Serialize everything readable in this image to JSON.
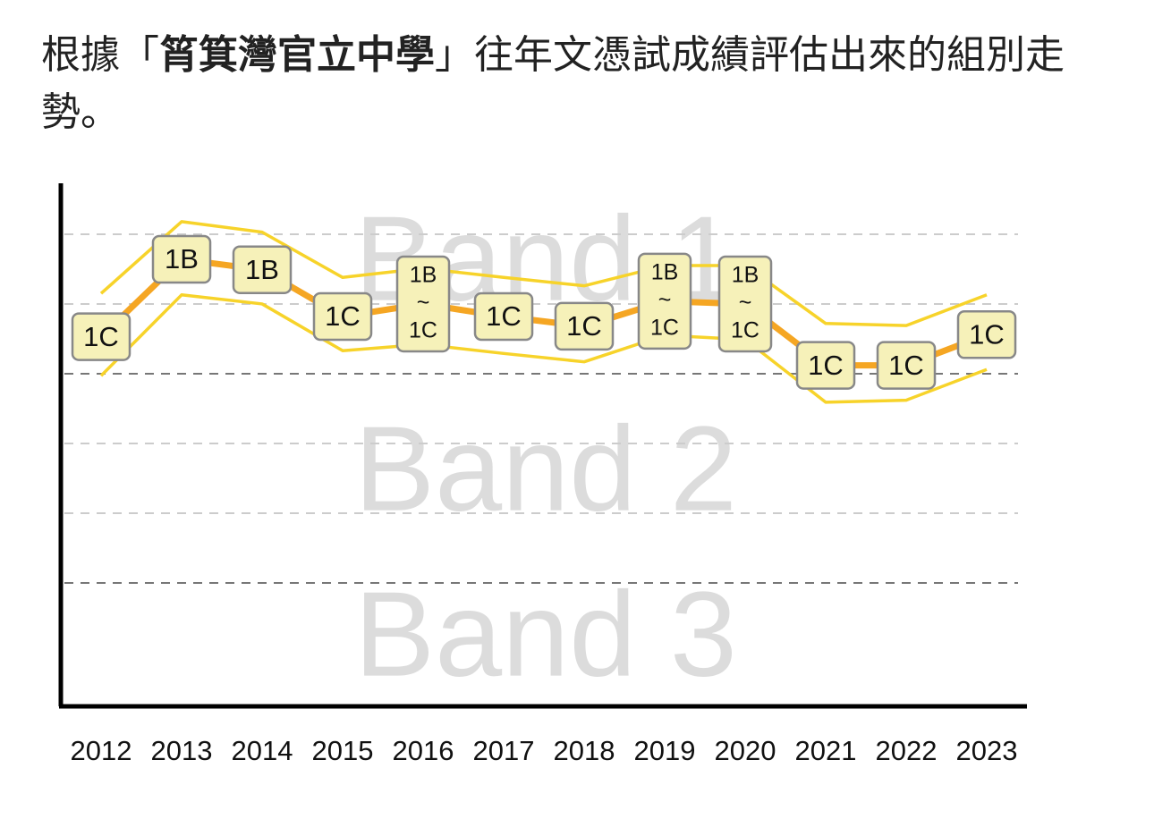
{
  "intro": {
    "prefix": "根據「",
    "school": "筲箕灣官立中學",
    "suffix": "」往年文憑試成績評估出來的組別走勢。"
  },
  "chart_data": {
    "type": "line",
    "categories": [
      "2012",
      "2013",
      "2014",
      "2015",
      "2016",
      "2017",
      "2018",
      "2019",
      "2020",
      "2021",
      "2022",
      "2023"
    ],
    "bands": [
      "Band 1",
      "Band 2",
      "Band 3"
    ],
    "ylim": [
      -0.77,
      6.73
    ],
    "yticks": [
      1,
      2,
      3,
      4,
      5,
      6
    ],
    "band_boundaries": [
      1,
      4
    ],
    "grid": true,
    "series": [
      {
        "color": "#f7d32a",
        "values": [
          5.15,
          6.18,
          6.03,
          5.38,
          5.51,
          5.38,
          5.26,
          5.55,
          5.55,
          4.72,
          4.69,
          5.13
        ]
      },
      {
        "color": "#f7d32a",
        "values": [
          3.97,
          5.13,
          5.0,
          4.33,
          4.42,
          4.29,
          4.17,
          4.55,
          4.49,
          3.59,
          3.62,
          4.06
        ]
      },
      {
        "color": "#f5a623",
        "values": [
          4.53,
          5.64,
          5.49,
          4.82,
          5.0,
          4.82,
          4.68,
          5.04,
          5.0,
          4.12,
          4.12,
          4.56
        ],
        "value_labels": [
          [
            "1C"
          ],
          [
            "1B"
          ],
          [
            "1B"
          ],
          [
            "1C"
          ],
          [
            "1B",
            "~",
            "1C"
          ],
          [
            "1C"
          ],
          [
            "1C"
          ],
          [
            "1B",
            "~",
            "1C"
          ],
          [
            "1B",
            "~",
            "1C"
          ],
          [
            "1C"
          ],
          [
            "1C"
          ],
          [
            "1C"
          ]
        ]
      }
    ]
  }
}
